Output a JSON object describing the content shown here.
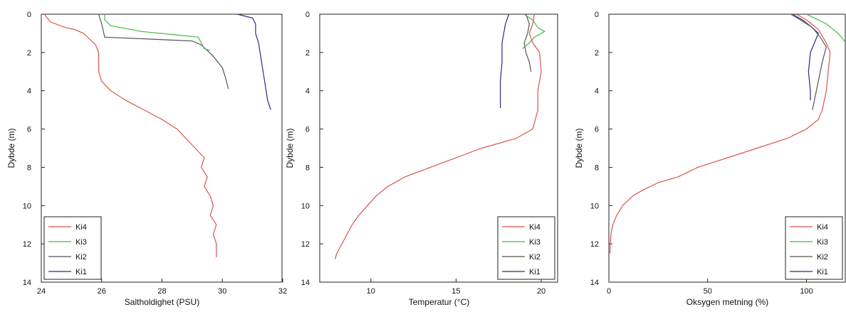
{
  "chart_data": [
    {
      "type": "line",
      "xlabel": "Saltholdighet (PSU)",
      "ylabel": "Dybde (m)",
      "xlim": [
        24,
        32
      ],
      "ylim": [
        0,
        14
      ],
      "y_reversed": true,
      "xticks": [
        24,
        26,
        28,
        30,
        32
      ],
      "yticks": [
        0,
        2,
        4,
        6,
        8,
        10,
        12,
        14
      ],
      "grid": false,
      "legend": "bottom-left",
      "series": [
        {
          "name": "Ki4",
          "color": "#d9564a",
          "points": [
            [
              24.1,
              0.0
            ],
            [
              24.3,
              0.4
            ],
            [
              24.8,
              0.7
            ],
            [
              25.1,
              0.8
            ],
            [
              25.4,
              1.0
            ],
            [
              25.6,
              1.3
            ],
            [
              25.8,
              1.6
            ],
            [
              25.9,
              2.0
            ],
            [
              25.9,
              2.5
            ],
            [
              25.9,
              3.0
            ],
            [
              26.0,
              3.5
            ],
            [
              26.3,
              4.0
            ],
            [
              26.8,
              4.5
            ],
            [
              27.4,
              5.0
            ],
            [
              28.0,
              5.5
            ],
            [
              28.5,
              6.0
            ],
            [
              28.8,
              6.5
            ],
            [
              29.1,
              7.0
            ],
            [
              29.4,
              7.5
            ],
            [
              29.3,
              8.0
            ],
            [
              29.5,
              8.5
            ],
            [
              29.4,
              9.0
            ],
            [
              29.6,
              9.5
            ],
            [
              29.7,
              10.0
            ],
            [
              29.6,
              10.5
            ],
            [
              29.8,
              11.0
            ],
            [
              29.7,
              11.5
            ],
            [
              29.8,
              12.0
            ],
            [
              29.8,
              12.7
            ]
          ]
        },
        {
          "name": "Ki3",
          "color": "#45b945",
          "points": [
            [
              26.1,
              0.0
            ],
            [
              26.1,
              0.3
            ],
            [
              26.3,
              0.6
            ],
            [
              27.3,
              0.9
            ],
            [
              28.6,
              1.1
            ],
            [
              29.2,
              1.2
            ],
            [
              29.3,
              1.5
            ],
            [
              29.4,
              1.8
            ],
            [
              29.6,
              1.9
            ]
          ]
        },
        {
          "name": "Ki2",
          "color": "#555555",
          "points": [
            [
              25.9,
              0.0
            ],
            [
              26.0,
              0.5
            ],
            [
              26.1,
              1.2
            ],
            [
              27.6,
              1.3
            ],
            [
              29.0,
              1.4
            ],
            [
              29.3,
              1.6
            ],
            [
              29.7,
              2.2
            ],
            [
              30.0,
              2.8
            ],
            [
              30.1,
              3.3
            ],
            [
              30.2,
              3.9
            ]
          ]
        },
        {
          "name": "Ki1",
          "color": "#2a2a8a",
          "points": [
            [
              30.5,
              0.0
            ],
            [
              31.0,
              0.2
            ],
            [
              31.1,
              0.5
            ],
            [
              31.1,
              1.0
            ],
            [
              31.2,
              1.5
            ],
            [
              31.3,
              2.5
            ],
            [
              31.4,
              3.5
            ],
            [
              31.5,
              4.5
            ],
            [
              31.6,
              5.0
            ]
          ]
        }
      ]
    },
    {
      "type": "line",
      "xlabel": "Temperatur (°C)",
      "ylabel": "Dybde (m)",
      "xlim": [
        7,
        21
      ],
      "ylim": [
        0,
        14
      ],
      "y_reversed": true,
      "xticks": [
        10,
        15,
        20
      ],
      "yticks": [
        0,
        2,
        4,
        6,
        8,
        10,
        12,
        14
      ],
      "grid": false,
      "legend": "bottom-right",
      "series": [
        {
          "name": "Ki4",
          "color": "#d9564a",
          "points": [
            [
              19.6,
              0.0
            ],
            [
              19.5,
              0.5
            ],
            [
              19.3,
              1.0
            ],
            [
              19.5,
              1.5
            ],
            [
              19.9,
              2.0
            ],
            [
              20.0,
              3.0
            ],
            [
              19.8,
              4.0
            ],
            [
              19.8,
              5.0
            ],
            [
              19.5,
              6.0
            ],
            [
              18.5,
              6.5
            ],
            [
              16.5,
              7.0
            ],
            [
              15.0,
              7.5
            ],
            [
              13.5,
              8.0
            ],
            [
              12.0,
              8.5
            ],
            [
              11.0,
              9.0
            ],
            [
              10.3,
              9.5
            ],
            [
              9.8,
              10.0
            ],
            [
              9.3,
              10.5
            ],
            [
              8.9,
              11.0
            ],
            [
              8.6,
              11.5
            ],
            [
              8.3,
              12.0
            ],
            [
              8.0,
              12.5
            ],
            [
              7.9,
              12.8
            ]
          ]
        },
        {
          "name": "Ki3",
          "color": "#45b945",
          "points": [
            [
              19.0,
              0.0
            ],
            [
              19.5,
              0.3
            ],
            [
              19.8,
              0.7
            ],
            [
              20.2,
              0.9
            ],
            [
              19.6,
              1.2
            ],
            [
              19.3,
              1.5
            ],
            [
              18.9,
              1.8
            ]
          ]
        },
        {
          "name": "Ki2",
          "color": "#555555",
          "points": [
            [
              19.1,
              0.0
            ],
            [
              19.3,
              0.5
            ],
            [
              19.2,
              1.0
            ],
            [
              19.0,
              1.5
            ],
            [
              19.1,
              2.0
            ],
            [
              19.3,
              2.5
            ],
            [
              19.4,
              3.0
            ]
          ]
        },
        {
          "name": "Ki1",
          "color": "#2a2a8a",
          "points": [
            [
              18.1,
              0.0
            ],
            [
              17.9,
              0.5
            ],
            [
              17.8,
              1.0
            ],
            [
              17.7,
              1.5
            ],
            [
              17.7,
              2.5
            ],
            [
              17.6,
              3.5
            ],
            [
              17.6,
              4.5
            ],
            [
              17.6,
              4.9
            ]
          ]
        }
      ]
    },
    {
      "type": "line",
      "xlabel": "Oksygen metning (%)",
      "ylabel": "Dybde (m)",
      "xlim": [
        0,
        120
      ],
      "ylim": [
        0,
        14
      ],
      "y_reversed": true,
      "xticks": [
        0,
        50,
        100
      ],
      "yticks": [
        0,
        2,
        4,
        6,
        8,
        10,
        12,
        14
      ],
      "grid": false,
      "legend": "bottom-right",
      "series": [
        {
          "name": "Ki4",
          "color": "#d9564a",
          "points": [
            [
              95,
              0.0
            ],
            [
              100,
              0.3
            ],
            [
              106,
              0.8
            ],
            [
              110,
              1.5
            ],
            [
              112,
              2.0
            ],
            [
              111,
              3.0
            ],
            [
              110,
              4.0
            ],
            [
              108,
              5.0
            ],
            [
              106,
              5.5
            ],
            [
              100,
              6.0
            ],
            [
              90,
              6.5
            ],
            [
              75,
              7.0
            ],
            [
              60,
              7.5
            ],
            [
              45,
              8.0
            ],
            [
              35,
              8.5
            ],
            [
              25,
              8.8
            ],
            [
              17,
              9.2
            ],
            [
              12,
              9.5
            ],
            [
              7,
              10.0
            ],
            [
              4,
              10.5
            ],
            [
              2,
              11.0
            ],
            [
              1,
              11.5
            ],
            [
              0.5,
              12.5
            ]
          ]
        },
        {
          "name": "Ki3",
          "color": "#45b945",
          "points": [
            [
              100,
              0.0
            ],
            [
              110,
              0.5
            ],
            [
              116,
              1.0
            ],
            [
              120,
              1.5
            ]
          ]
        },
        {
          "name": "Ki2",
          "color": "#555555",
          "points": [
            [
              92,
              0.0
            ],
            [
              97,
              0.3
            ],
            [
              103,
              0.7
            ],
            [
              107,
              1.2
            ],
            [
              110,
              1.7
            ],
            [
              108,
              2.5
            ],
            [
              106,
              3.5
            ],
            [
              104,
              4.5
            ],
            [
              103,
              5.0
            ]
          ]
        },
        {
          "name": "Ki1",
          "color": "#2a2a8a",
          "points": [
            [
              93,
              0.0
            ],
            [
              98,
              0.3
            ],
            [
              103,
              0.7
            ],
            [
              106,
              1.0
            ],
            [
              104,
              1.5
            ],
            [
              102,
              2.0
            ],
            [
              101,
              3.0
            ],
            [
              102,
              4.0
            ],
            [
              102,
              4.5
            ]
          ]
        }
      ]
    }
  ]
}
